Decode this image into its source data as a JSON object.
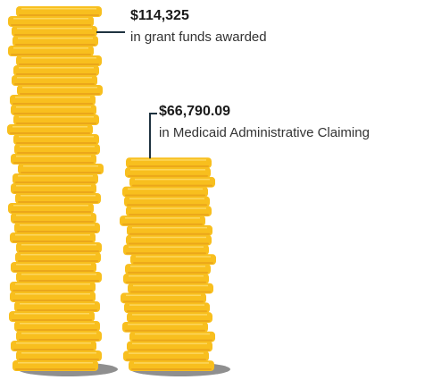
{
  "chart_data": {
    "type": "coin-stack",
    "categories": [
      "in grant funds awarded",
      "in Medicaid Administrative Claiming"
    ],
    "values": [
      114325,
      66790.09
    ],
    "value_labels": [
      "$114,325",
      "$66,790.09"
    ],
    "color": "#f8bf1e"
  }
}
